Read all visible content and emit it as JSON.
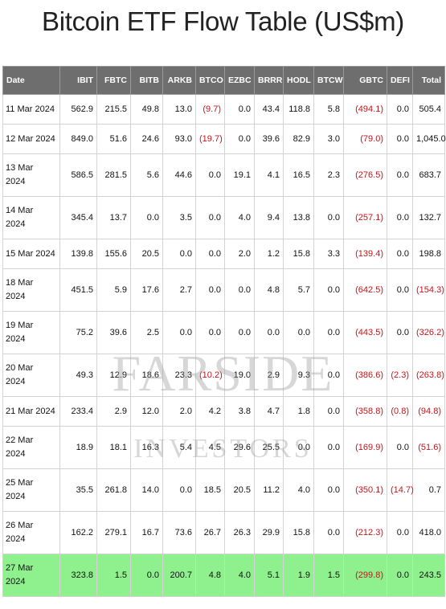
{
  "title": "Bitcoin ETF Flow Table (US$m)",
  "watermark": {
    "line1": "FARSIDE",
    "line2": "INVESTORS"
  },
  "colors": {
    "header_bg": "#6e6e6e",
    "negative": "#c0171c",
    "highlight_row": "#8ef18e"
  },
  "columns": [
    "Date",
    "IBIT",
    "FBTC",
    "BITB",
    "ARKB",
    "BTCO",
    "EZBC",
    "BRRR",
    "HODL",
    "BTCW",
    "GBTC",
    "DEFI",
    "Total"
  ],
  "rows": [
    {
      "date": "11 Mar 2024",
      "cells": [
        "562.9",
        "215.5",
        "49.8",
        "13.0",
        "(9.7)",
        "0.0",
        "43.4",
        "118.8",
        "5.8",
        "(494.1)",
        "0.0",
        "505.4"
      ]
    },
    {
      "date": "12 Mar 2024",
      "cells": [
        "849.0",
        "51.6",
        "24.6",
        "93.0",
        "(19.7)",
        "0.0",
        "39.6",
        "82.9",
        "3.0",
        "(79.0)",
        "0.0",
        "1,045.0"
      ]
    },
    {
      "date": "13 Mar 2024",
      "cells": [
        "586.5",
        "281.5",
        "5.6",
        "44.6",
        "0.0",
        "19.1",
        "4.1",
        "16.5",
        "2.3",
        "(276.5)",
        "0.0",
        "683.7"
      ]
    },
    {
      "date": "14 Mar 2024",
      "cells": [
        "345.4",
        "13.7",
        "0.0",
        "3.5",
        "0.0",
        "4.0",
        "9.4",
        "13.8",
        "0.0",
        "(257.1)",
        "0.0",
        "132.7"
      ]
    },
    {
      "date": "15 Mar 2024",
      "cells": [
        "139.8",
        "155.6",
        "20.5",
        "0.0",
        "0.0",
        "2.0",
        "1.2",
        "15.8",
        "3.3",
        "(139.4)",
        "0.0",
        "198.8"
      ]
    },
    {
      "date": "18 Mar 2024",
      "cells": [
        "451.5",
        "5.9",
        "17.6",
        "2.7",
        "0.0",
        "0.0",
        "4.8",
        "5.7",
        "0.0",
        "(642.5)",
        "0.0",
        "(154.3)"
      ]
    },
    {
      "date": "19 Mar 2024",
      "cells": [
        "75.2",
        "39.6",
        "2.5",
        "0.0",
        "0.0",
        "0.0",
        "0.0",
        "0.0",
        "0.0",
        "(443.5)",
        "0.0",
        "(326.2)"
      ]
    },
    {
      "date": "20 Mar 2024",
      "cells": [
        "49.3",
        "12.9",
        "18.6",
        "23.3",
        "(10.2)",
        "19.0",
        "2.9",
        "9.3",
        "0.0",
        "(386.6)",
        "(2.3)",
        "(263.8)"
      ]
    },
    {
      "date": "21 Mar 2024",
      "cells": [
        "233.4",
        "2.9",
        "12.0",
        "2.0",
        "4.2",
        "3.8",
        "4.7",
        "1.8",
        "0.0",
        "(358.8)",
        "(0.8)",
        "(94.8)"
      ]
    },
    {
      "date": "22 Mar 2024",
      "cells": [
        "18.9",
        "18.1",
        "16.3",
        "5.4",
        "4.5",
        "29.6",
        "25.5",
        "0.0",
        "0.0",
        "(169.9)",
        "0.0",
        "(51.6)"
      ]
    },
    {
      "date": "25 Mar 2024",
      "cells": [
        "35.5",
        "261.8",
        "14.0",
        "0.0",
        "18.5",
        "20.5",
        "11.2",
        "4.0",
        "0.0",
        "(350.1)",
        "(14.7)",
        "0.7"
      ]
    },
    {
      "date": "26 Mar 2024",
      "cells": [
        "162.2",
        "279.1",
        "16.7",
        "73.6",
        "26.7",
        "26.3",
        "29.9",
        "15.8",
        "0.0",
        "(212.3)",
        "0.0",
        "418.0"
      ]
    },
    {
      "date": "27 Mar 2024",
      "cells": [
        "323.8",
        "1.5",
        "0.0",
        "200.7",
        "4.8",
        "4.0",
        "5.1",
        "1.9",
        "1.5",
        "(299.8)",
        "0.0",
        "243.5"
      ],
      "highlight": true
    }
  ]
}
